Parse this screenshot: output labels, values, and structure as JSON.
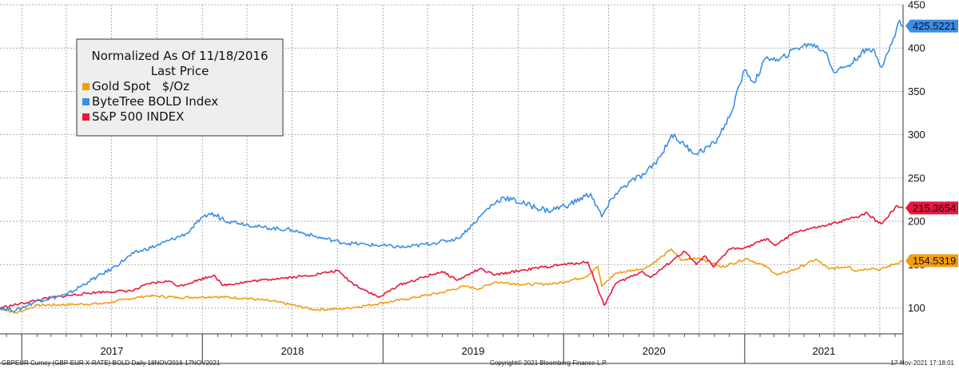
{
  "chart_data": {
    "type": "line",
    "title": "Normalized As Of 11/18/2016",
    "legend_header": "Last Price",
    "legend_placement": "top-left",
    "grid": true,
    "x_range": [
      "2016-11-18",
      "2021-11-17"
    ],
    "ylim": [
      70,
      450
    ],
    "yticks": [
      100,
      150,
      200,
      250,
      300,
      350,
      400,
      450
    ],
    "xticks": [
      {
        "label": "2017",
        "start": "2017-01-01",
        "end": "2017-12-31"
      },
      {
        "label": "2018",
        "start": "2018-01-01",
        "end": "2018-12-31"
      },
      {
        "label": "2019",
        "start": "2019-01-01",
        "end": "2019-12-31"
      },
      {
        "label": "2020",
        "start": "2020-01-01",
        "end": "2020-12-31"
      },
      {
        "label": "2021",
        "start": "2021-01-01",
        "end": "2021-11-17"
      }
    ],
    "series": [
      {
        "name": "Gold Spot   $/Oz",
        "color": "#f39c12",
        "last_value": "154.5319",
        "points": [
          [
            "2016-11-18",
            100
          ],
          [
            "2016-12-20",
            94
          ],
          [
            "2017-02-01",
            103
          ],
          [
            "2017-04-15",
            104
          ],
          [
            "2017-06-15",
            105
          ],
          [
            "2017-08-01",
            110
          ],
          [
            "2017-09-15",
            114
          ],
          [
            "2017-11-15",
            112
          ],
          [
            "2018-01-25",
            113
          ],
          [
            "2018-04-01",
            111
          ],
          [
            "2018-06-01",
            107
          ],
          [
            "2018-08-15",
            98
          ],
          [
            "2018-10-15",
            99
          ],
          [
            "2018-12-01",
            103
          ],
          [
            "2019-02-15",
            110
          ],
          [
            "2019-05-01",
            118
          ],
          [
            "2019-06-15",
            125
          ],
          [
            "2019-07-15",
            122
          ],
          [
            "2019-08-15",
            130
          ],
          [
            "2019-10-15",
            127
          ],
          [
            "2019-12-15",
            128
          ],
          [
            "2020-02-15",
            136
          ],
          [
            "2020-03-10",
            148
          ],
          [
            "2020-03-18",
            125
          ],
          [
            "2020-04-15",
            140
          ],
          [
            "2020-06-15",
            146
          ],
          [
            "2020-07-20",
            160
          ],
          [
            "2020-08-06",
            168
          ],
          [
            "2020-08-25",
            155
          ],
          [
            "2020-10-01",
            158
          ],
          [
            "2020-11-15",
            147
          ],
          [
            "2021-01-05",
            157
          ],
          [
            "2021-02-15",
            147
          ],
          [
            "2021-03-08",
            138
          ],
          [
            "2021-04-15",
            145
          ],
          [
            "2021-05-25",
            156
          ],
          [
            "2021-06-20",
            145
          ],
          [
            "2021-08-01",
            148
          ],
          [
            "2021-08-10",
            143
          ],
          [
            "2021-09-15",
            146
          ],
          [
            "2021-10-01",
            144
          ],
          [
            "2021-11-17",
            154.5
          ]
        ]
      },
      {
        "name": "ByteTree BOLD Index",
        "color": "#3a8ee6",
        "last_value": "425.5221",
        "points": [
          [
            "2016-11-18",
            100
          ],
          [
            "2016-12-20",
            97
          ],
          [
            "2017-02-01",
            108
          ],
          [
            "2017-04-01",
            115
          ],
          [
            "2017-05-15",
            130
          ],
          [
            "2017-07-01",
            145
          ],
          [
            "2017-08-15",
            163
          ],
          [
            "2017-10-01",
            172
          ],
          [
            "2017-12-01",
            186
          ],
          [
            "2017-12-20",
            198
          ],
          [
            "2018-01-15",
            209
          ],
          [
            "2018-03-01",
            200
          ],
          [
            "2018-05-01",
            193
          ],
          [
            "2018-07-01",
            190
          ],
          [
            "2018-08-20",
            182
          ],
          [
            "2018-10-15",
            175
          ],
          [
            "2018-12-01",
            173
          ],
          [
            "2019-02-15",
            170
          ],
          [
            "2019-04-15",
            175
          ],
          [
            "2019-06-01",
            180
          ],
          [
            "2019-07-01",
            196
          ],
          [
            "2019-08-01",
            215
          ],
          [
            "2019-09-01",
            228
          ],
          [
            "2019-10-15",
            220
          ],
          [
            "2019-12-01",
            212
          ],
          [
            "2020-01-15",
            220
          ],
          [
            "2020-02-25",
            232
          ],
          [
            "2020-03-18",
            205
          ],
          [
            "2020-04-15",
            232
          ],
          [
            "2020-05-15",
            246
          ],
          [
            "2020-06-15",
            255
          ],
          [
            "2020-07-15",
            275
          ],
          [
            "2020-08-06",
            300
          ],
          [
            "2020-09-01",
            288
          ],
          [
            "2020-09-25",
            278
          ],
          [
            "2020-11-01",
            290
          ],
          [
            "2020-12-01",
            320
          ],
          [
            "2021-01-01",
            375
          ],
          [
            "2021-01-20",
            360
          ],
          [
            "2021-02-15",
            390
          ],
          [
            "2021-03-10",
            385
          ],
          [
            "2021-04-15",
            400
          ],
          [
            "2021-05-15",
            405
          ],
          [
            "2021-06-15",
            395
          ],
          [
            "2021-06-30",
            372
          ],
          [
            "2021-07-20",
            378
          ],
          [
            "2021-08-05",
            382
          ],
          [
            "2021-08-25",
            395
          ],
          [
            "2021-09-20",
            398
          ],
          [
            "2021-10-05",
            378
          ],
          [
            "2021-10-25",
            405
          ],
          [
            "2021-11-10",
            432
          ],
          [
            "2021-11-17",
            425.5
          ]
        ]
      },
      {
        "name": "S&P 500 INDEX",
        "color": "#e8173b",
        "last_value": "215.3654",
        "points": [
          [
            "2016-11-18",
            100
          ],
          [
            "2017-03-01",
            112
          ],
          [
            "2017-06-01",
            118
          ],
          [
            "2017-08-15",
            120
          ],
          [
            "2017-09-15",
            128
          ],
          [
            "2017-10-25",
            131
          ],
          [
            "2017-11-15",
            125
          ],
          [
            "2018-01-25",
            138
          ],
          [
            "2018-02-10",
            126
          ],
          [
            "2018-04-01",
            130
          ],
          [
            "2018-06-01",
            134
          ],
          [
            "2018-08-01",
            137
          ],
          [
            "2018-10-01",
            143
          ],
          [
            "2018-11-01",
            128
          ],
          [
            "2018-12-24",
            112
          ],
          [
            "2019-02-01",
            126
          ],
          [
            "2019-04-30",
            142
          ],
          [
            "2019-06-01",
            132
          ],
          [
            "2019-07-15",
            145
          ],
          [
            "2019-08-15",
            138
          ],
          [
            "2019-10-15",
            144
          ],
          [
            "2019-12-31",
            150
          ],
          [
            "2020-02-19",
            153
          ],
          [
            "2020-03-23",
            103
          ],
          [
            "2020-04-15",
            128
          ],
          [
            "2020-06-08",
            142
          ],
          [
            "2020-06-25",
            135
          ],
          [
            "2020-08-15",
            158
          ],
          [
            "2020-09-02",
            165
          ],
          [
            "2020-09-25",
            150
          ],
          [
            "2020-10-12",
            160
          ],
          [
            "2020-10-30",
            147
          ],
          [
            "2020-12-01",
            168
          ],
          [
            "2021-01-05",
            170
          ],
          [
            "2021-02-15",
            180
          ],
          [
            "2021-03-04",
            172
          ],
          [
            "2021-04-15",
            188
          ],
          [
            "2021-06-15",
            195
          ],
          [
            "2021-08-15",
            205
          ],
          [
            "2021-09-02",
            210
          ],
          [
            "2021-10-04",
            197
          ],
          [
            "2021-11-05",
            218
          ],
          [
            "2021-11-17",
            215.4
          ]
        ]
      }
    ]
  },
  "footer": {
    "left": "GBPEUR Curncy (GBP-EUR X-RATE) BOLD  Daily 18NOV2016-17NOV2021",
    "center": "Copyright© 2021 Bloomberg Finance L.P.",
    "right": "17-Nov-2021 17:18:01"
  }
}
